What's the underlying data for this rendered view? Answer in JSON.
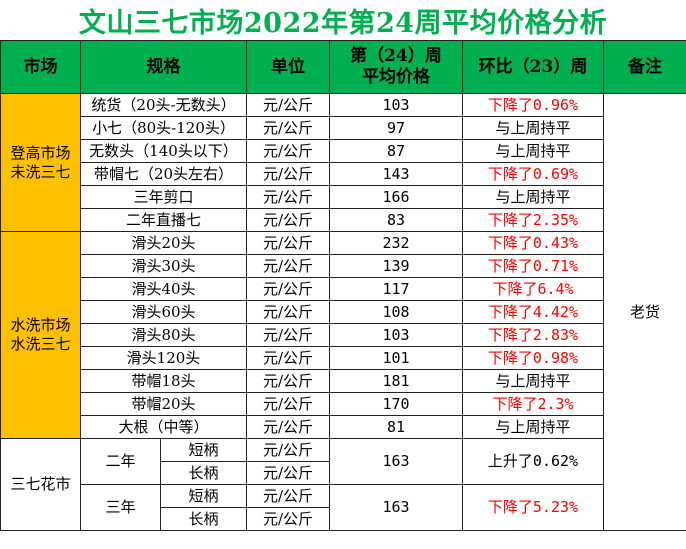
{
  "title": "文山三七市场2022年第24周平均价格分析",
  "headers": {
    "market": "市场",
    "spec": "规格",
    "unit": "单位",
    "price_line1": "第（24）周",
    "price_line2": "平均价格",
    "change": "环比（23）周",
    "note": "备注"
  },
  "groups": {
    "g1_line1": "登高市场",
    "g1_line2": "未洗三七",
    "g2_line1": "水洗市场",
    "g2_line2": "水洗三七",
    "g3": "三七花市"
  },
  "unit_text": "元/公斤",
  "note_text": "老货",
  "rows": [
    {
      "spec": "统货（20头-无数头）",
      "price": "103",
      "change": "下降了0.96%"
    },
    {
      "spec": "小七（80头-120头）",
      "price": "97",
      "change": "与上周持平"
    },
    {
      "spec": "无数头（140头以下）",
      "price": "87",
      "change": "与上周持平"
    },
    {
      "spec": "带帽七（20头左右）",
      "price": "143",
      "change": "下降了0.69%"
    },
    {
      "spec": "三年剪口",
      "price": "166",
      "change": "与上周持平"
    },
    {
      "spec": "二年直播七",
      "price": "83",
      "change": "下降了2.35%"
    },
    {
      "spec": "滑头20头",
      "price": "232",
      "change": "下降了0.43%"
    },
    {
      "spec": "滑头30头",
      "price": "139",
      "change": "下降了0.71%"
    },
    {
      "spec": "滑头40头",
      "price": "117",
      "change": "下降了6.4%"
    },
    {
      "spec": "滑头60头",
      "price": "108",
      "change": "下降了4.42%"
    },
    {
      "spec": "滑头80头",
      "price": "103",
      "change": "下降了2.83%"
    },
    {
      "spec": "滑头120头",
      "price": "101",
      "change": "下降了0.98%"
    },
    {
      "spec": "带帽18头",
      "price": "181",
      "change": "与上周持平"
    },
    {
      "spec": "带帽20头",
      "price": "170",
      "change": "下降了2.3%"
    },
    {
      "spec": "大根（中等）",
      "price": "81",
      "change": "与上周持平"
    }
  ],
  "flower": {
    "year2": "二年",
    "year3": "三年",
    "short": "短柄",
    "long": "长柄",
    "price2": "163",
    "change2": "上升了0.62%",
    "price3": "163",
    "change3": "下降了5.23%"
  },
  "colors": {
    "title": "#00B050",
    "header_bg": "#00B050",
    "group_bg": "#FFC000",
    "decrease": "#FF0000"
  }
}
